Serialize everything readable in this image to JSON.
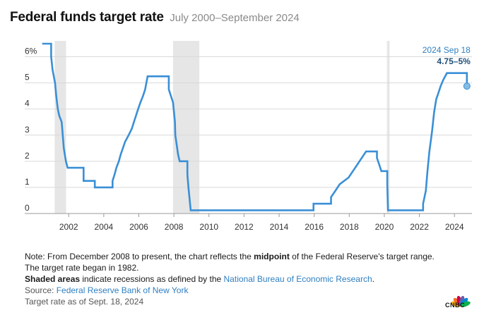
{
  "header": {
    "title": "Federal funds target rate",
    "subtitle": "July 2000–September 2024"
  },
  "chart_data": {
    "type": "line",
    "title": "Federal funds target rate",
    "subtitle": "July 2000–September 2024",
    "xlabel": "",
    "ylabel": "",
    "xlim": [
      2000.5,
      2025.0
    ],
    "ylim": [
      0,
      6.5
    ],
    "y_ticks": [
      0,
      1,
      2,
      3,
      4,
      5,
      6
    ],
    "y_tick_labels": [
      "0",
      "1",
      "2",
      "3",
      "4",
      "5",
      "6%"
    ],
    "x_ticks": [
      2002,
      2004,
      2006,
      2008,
      2010,
      2012,
      2014,
      2016,
      2018,
      2020,
      2022,
      2024
    ],
    "x_tick_labels": [
      "2002",
      "2004",
      "2006",
      "2008",
      "2010",
      "2012",
      "2014",
      "2016",
      "2018",
      "2020",
      "2022",
      "2024"
    ],
    "grid": "horizontal",
    "line_color": "#3a8fd6",
    "recession_color": "#e6e6e6",
    "recessions": [
      [
        2001.2,
        2001.85
      ],
      [
        2007.95,
        2009.45
      ],
      [
        2020.15,
        2020.3
      ]
    ],
    "series": [
      {
        "points": [
          [
            2000.54,
            6.5
          ],
          [
            2001.0,
            6.5
          ],
          [
            2001.0,
            6.0
          ],
          [
            2001.08,
            5.5
          ],
          [
            2001.22,
            5.0
          ],
          [
            2001.29,
            4.5
          ],
          [
            2001.38,
            4.0
          ],
          [
            2001.46,
            3.75
          ],
          [
            2001.6,
            3.5
          ],
          [
            2001.66,
            3.0
          ],
          [
            2001.72,
            2.5
          ],
          [
            2001.84,
            2.0
          ],
          [
            2001.94,
            1.75
          ],
          [
            2002.85,
            1.75
          ],
          [
            2002.85,
            1.25
          ],
          [
            2003.49,
            1.25
          ],
          [
            2003.49,
            1.0
          ],
          [
            2004.5,
            1.0
          ],
          [
            2004.5,
            1.25
          ],
          [
            2004.62,
            1.5
          ],
          [
            2004.72,
            1.75
          ],
          [
            2004.86,
            2.0
          ],
          [
            2004.96,
            2.25
          ],
          [
            2005.09,
            2.5
          ],
          [
            2005.22,
            2.75
          ],
          [
            2005.42,
            3.0
          ],
          [
            2005.6,
            3.25
          ],
          [
            2005.72,
            3.5
          ],
          [
            2005.84,
            3.75
          ],
          [
            2005.96,
            4.0
          ],
          [
            2006.09,
            4.25
          ],
          [
            2006.24,
            4.5
          ],
          [
            2006.36,
            4.75
          ],
          [
            2006.5,
            5.25
          ],
          [
            2007.71,
            5.25
          ],
          [
            2007.71,
            4.75
          ],
          [
            2007.83,
            4.5
          ],
          [
            2007.95,
            4.25
          ],
          [
            2008.06,
            3.5
          ],
          [
            2008.08,
            3.0
          ],
          [
            2008.24,
            2.25
          ],
          [
            2008.33,
            2.0
          ],
          [
            2008.77,
            2.0
          ],
          [
            2008.77,
            1.5
          ],
          [
            2008.83,
            1.0
          ],
          [
            2008.96,
            0.125
          ],
          [
            2015.96,
            0.125
          ],
          [
            2015.96,
            0.375
          ],
          [
            2016.96,
            0.375
          ],
          [
            2016.96,
            0.625
          ],
          [
            2017.21,
            0.875
          ],
          [
            2017.46,
            1.125
          ],
          [
            2017.96,
            1.375
          ],
          [
            2018.21,
            1.625
          ],
          [
            2018.46,
            1.875
          ],
          [
            2018.71,
            2.125
          ],
          [
            2018.96,
            2.375
          ],
          [
            2019.58,
            2.375
          ],
          [
            2019.58,
            2.125
          ],
          [
            2019.71,
            1.875
          ],
          [
            2019.83,
            1.625
          ],
          [
            2020.17,
            1.625
          ],
          [
            2020.17,
            1.125
          ],
          [
            2020.21,
            0.125
          ],
          [
            2022.21,
            0.125
          ],
          [
            2022.21,
            0.375
          ],
          [
            2022.37,
            0.875
          ],
          [
            2022.46,
            1.625
          ],
          [
            2022.57,
            2.375
          ],
          [
            2022.72,
            3.125
          ],
          [
            2022.84,
            3.875
          ],
          [
            2022.96,
            4.375
          ],
          [
            2023.09,
            4.625
          ],
          [
            2023.21,
            4.875
          ],
          [
            2023.37,
            5.125
          ],
          [
            2023.57,
            5.375
          ],
          [
            2024.71,
            5.375
          ],
          [
            2024.71,
            4.875
          ]
        ]
      }
    ],
    "annotations": [
      {
        "x": 2024.71,
        "y": 4.875,
        "label": "2024 Sep 18",
        "value_label": "4.75–5%"
      }
    ]
  },
  "notes": {
    "line1_prefix": "Note: From December 2008 to present, the chart reflects the ",
    "line1_bold": "midpoint",
    "line1_suffix": " of the Federal Reserve's target range. The target rate began in 1982.",
    "line2_bold": "Shaded areas",
    "line2_mid": " indicate recessions as defined by the ",
    "line2_link": "National Bureau of Economic Research",
    "line2_end": ".",
    "source_prefix": "Source: ",
    "source_link": "Federal Reserve Bank of New York",
    "asof": "Target rate as of Sept. 18, 2024"
  },
  "logo": {
    "text": "CNBC",
    "colors": [
      "#f7b21b",
      "#f37021",
      "#cc004c",
      "#6460aa",
      "#0089d0",
      "#0db14b"
    ]
  }
}
